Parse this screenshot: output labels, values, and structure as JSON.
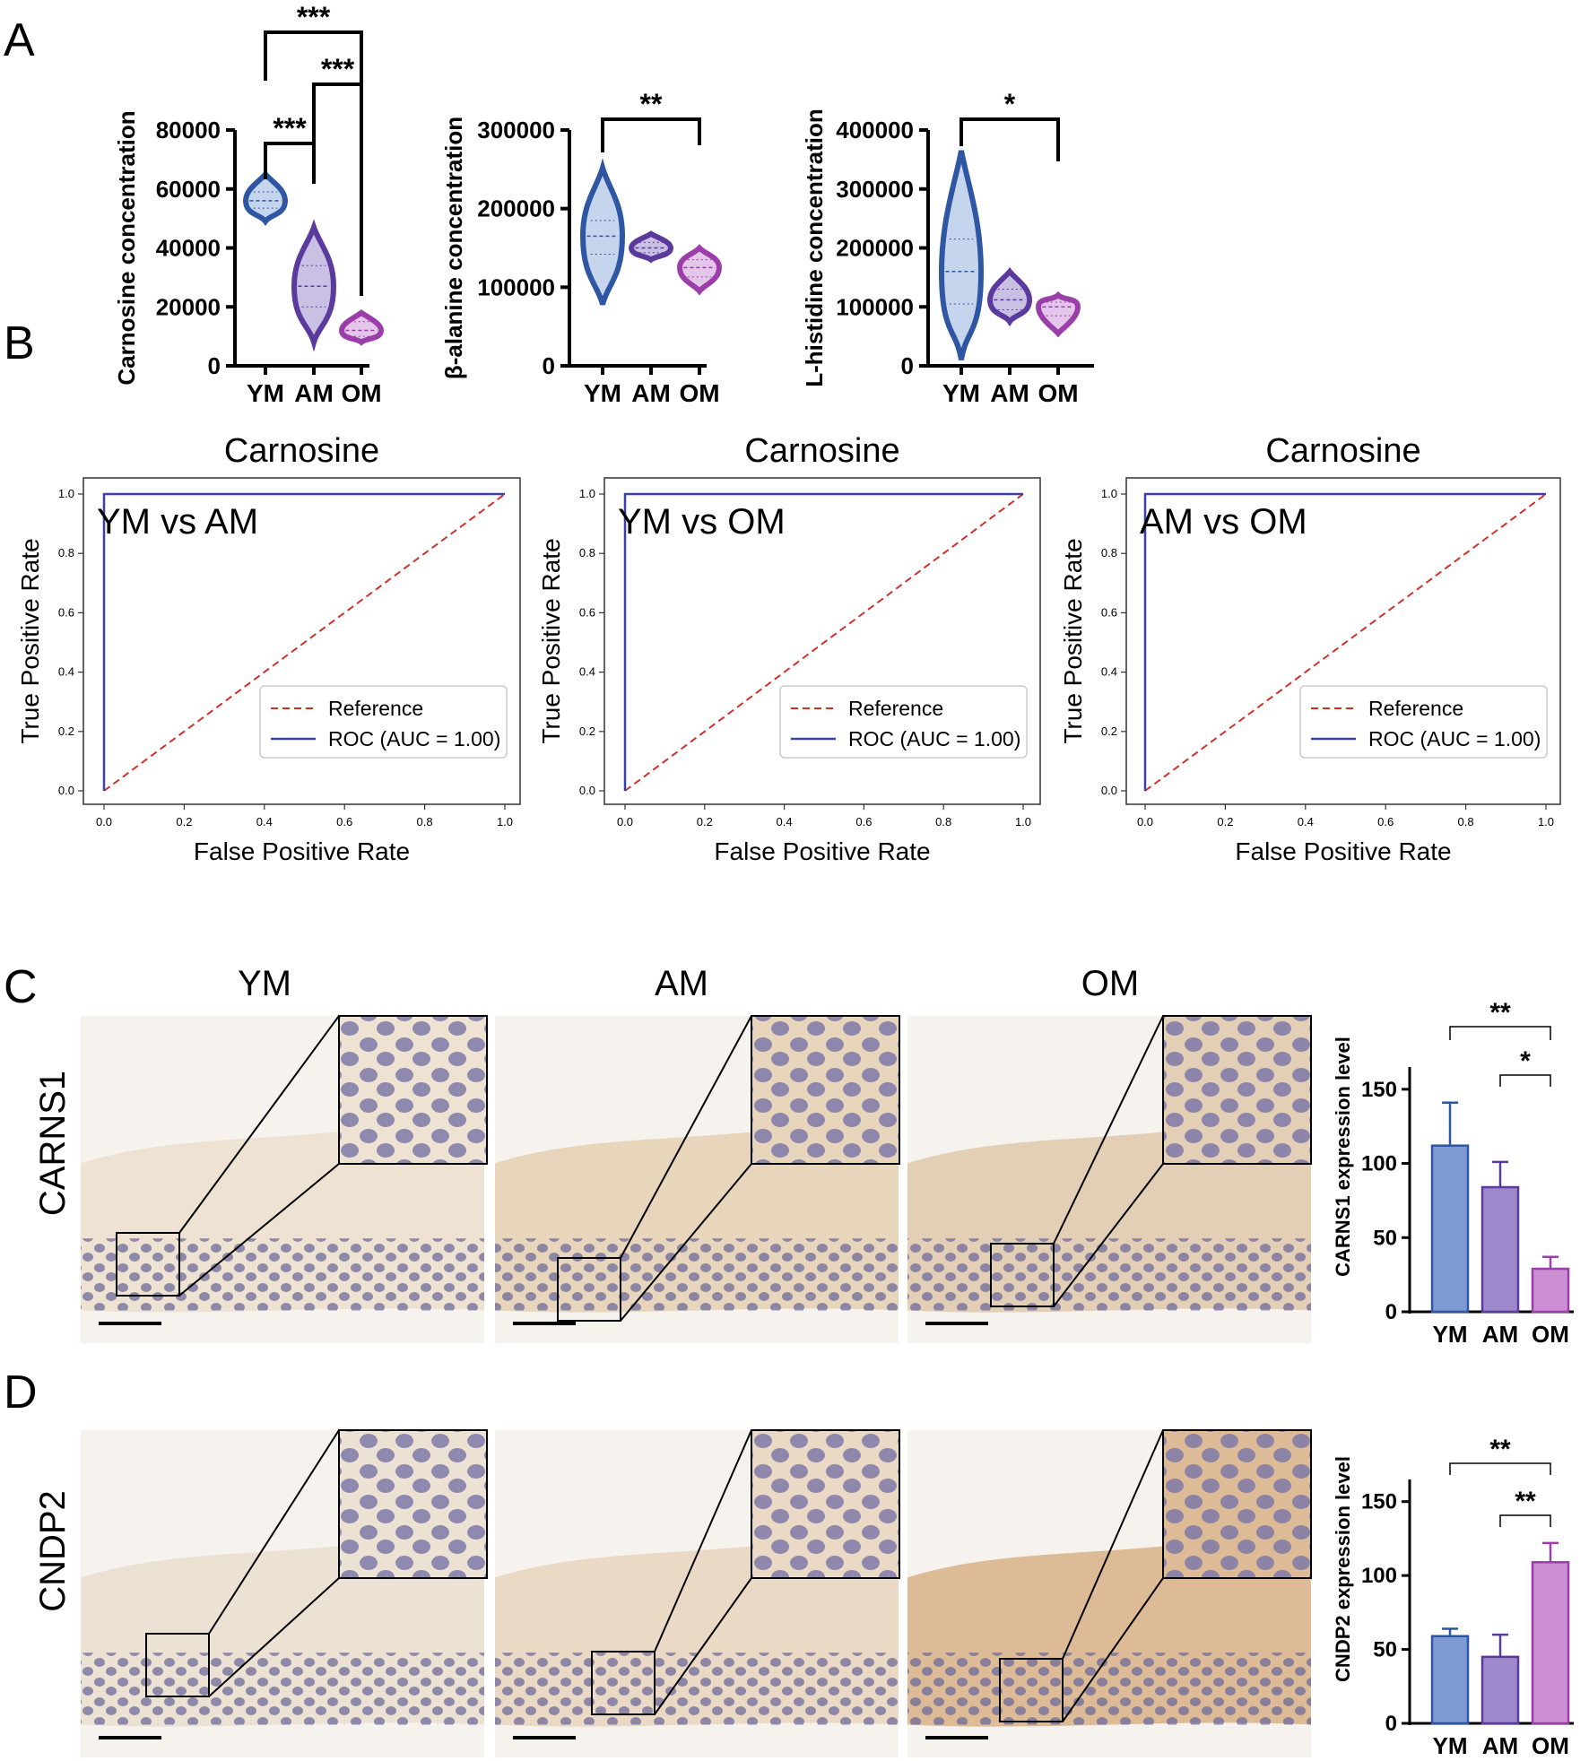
{
  "panel_labels": {
    "a": "A",
    "b": "B",
    "c": "C",
    "d": "D"
  },
  "colors": {
    "ym": "#2f56a3",
    "am": "#5b3a9e",
    "om": "#9b3ea9",
    "ym_fill": "#c5d5ee",
    "am_fill": "#c9c0e3",
    "om_fill": "#e3c6ea",
    "roc": "#3b3fa8",
    "reference": "#d0312d"
  },
  "chart_data": [
    {
      "id": "A1",
      "type": "violin",
      "ylabel": "Carnosine concentration",
      "categories": [
        "YM",
        "AM",
        "OM"
      ],
      "yticks": [
        0,
        20000,
        40000,
        60000,
        80000
      ],
      "ylim": [
        0,
        80000
      ],
      "violins": [
        {
          "group": "YM",
          "min": 49000,
          "max": 65000,
          "median": 56000,
          "q1": 53500,
          "q3": 59000
        },
        {
          "group": "AM",
          "min": 8000,
          "max": 47000,
          "median": 27000,
          "q1": 20000,
          "q3": 34000
        },
        {
          "group": "OM",
          "min": 8000,
          "max": 18000,
          "median": 12000,
          "q1": 10000,
          "q3": 15000
        }
      ],
      "significance": [
        {
          "from": "YM",
          "to": "AM",
          "label": "***"
        },
        {
          "from": "AM",
          "to": "OM",
          "label": "***"
        },
        {
          "from": "YM",
          "to": "OM",
          "label": "***"
        }
      ]
    },
    {
      "id": "A2",
      "type": "violin",
      "ylabel": "β-alanine concentration",
      "categories": [
        "YM",
        "AM",
        "OM"
      ],
      "yticks": [
        0,
        100000,
        200000,
        300000
      ],
      "ylim": [
        0,
        300000
      ],
      "violins": [
        {
          "group": "YM",
          "min": 78000,
          "max": 252000,
          "median": 165000,
          "q1": 142000,
          "q3": 185000
        },
        {
          "group": "AM",
          "min": 135000,
          "max": 168000,
          "median": 150000,
          "q1": 144000,
          "q3": 157000
        },
        {
          "group": "OM",
          "min": 95000,
          "max": 150000,
          "median": 125000,
          "q1": 113000,
          "q3": 135000
        }
      ],
      "significance": [
        {
          "from": "YM",
          "to": "OM",
          "label": "**"
        }
      ]
    },
    {
      "id": "A3",
      "type": "violin",
      "ylabel": "L-histidine concentration",
      "categories": [
        "YM",
        "AM",
        "OM"
      ],
      "yticks": [
        0,
        100000,
        200000,
        300000,
        400000
      ],
      "ylim": [
        0,
        400000
      ],
      "violins": [
        {
          "group": "YM",
          "min": 10000,
          "max": 365000,
          "median": 160000,
          "q1": 105000,
          "q3": 215000
        },
        {
          "group": "AM",
          "min": 75000,
          "max": 160000,
          "median": 112000,
          "q1": 95000,
          "q3": 130000
        },
        {
          "group": "OM",
          "min": 55000,
          "max": 120000,
          "median": 100000,
          "q1": 85000,
          "q3": 108000
        }
      ],
      "significance": [
        {
          "from": "YM",
          "to": "OM",
          "label": "*"
        }
      ]
    },
    {
      "id": "B1",
      "type": "line",
      "title": "Carnosine",
      "annotation": "YM vs AM",
      "xlabel": "False Positive Rate",
      "ylabel": "True Positive Rate",
      "xlim": [
        0,
        1
      ],
      "ylim": [
        0,
        1
      ],
      "ticks": [
        "0.0",
        "0.2",
        "0.4",
        "0.6",
        "0.8",
        "1.0"
      ],
      "legend": "bottom-right",
      "series": [
        {
          "name": "Reference",
          "style": "dashed",
          "x": [
            0,
            1
          ],
          "y": [
            0,
            1
          ]
        },
        {
          "name": "ROC (AUC = 1.00)",
          "style": "solid",
          "x": [
            0,
            0,
            1
          ],
          "y": [
            0,
            1,
            1
          ]
        }
      ]
    },
    {
      "id": "B2",
      "type": "line",
      "title": "Carnosine",
      "annotation": "YM vs OM",
      "xlabel": "False Positive Rate",
      "ylabel": "True Positive Rate",
      "xlim": [
        0,
        1
      ],
      "ylim": [
        0,
        1
      ],
      "ticks": [
        "0.0",
        "0.2",
        "0.4",
        "0.6",
        "0.8",
        "1.0"
      ],
      "legend": "bottom-right",
      "series": [
        {
          "name": "Reference",
          "style": "dashed",
          "x": [
            0,
            1
          ],
          "y": [
            0,
            1
          ]
        },
        {
          "name": "ROC (AUC = 1.00)",
          "style": "solid",
          "x": [
            0,
            0,
            1
          ],
          "y": [
            0,
            1,
            1
          ]
        }
      ]
    },
    {
      "id": "B3",
      "type": "line",
      "title": "Carnosine",
      "annotation": "AM vs OM",
      "xlabel": "False Positive Rate",
      "ylabel": "True Positive Rate",
      "xlim": [
        0,
        1
      ],
      "ylim": [
        0,
        1
      ],
      "ticks": [
        "0.0",
        "0.2",
        "0.4",
        "0.6",
        "0.8",
        "1.0"
      ],
      "legend": "bottom-right",
      "series": [
        {
          "name": "Reference",
          "style": "dashed",
          "x": [
            0,
            1
          ],
          "y": [
            0,
            1
          ]
        },
        {
          "name": "ROC (AUC = 1.00)",
          "style": "solid",
          "x": [
            0,
            0,
            1
          ],
          "y": [
            0,
            1,
            1
          ]
        }
      ]
    },
    {
      "id": "C",
      "type": "bar",
      "ylabel": "CARNS1 expression level",
      "categories": [
        "YM",
        "AM",
        "OM"
      ],
      "values": [
        112,
        84,
        29
      ],
      "errors": [
        29,
        17,
        8
      ],
      "yticks": [
        0,
        50,
        100,
        150
      ],
      "ylim": [
        0,
        165
      ],
      "significance": [
        {
          "from": "YM",
          "to": "OM",
          "label": "**"
        },
        {
          "from": "AM",
          "to": "OM",
          "label": "*"
        }
      ]
    },
    {
      "id": "D",
      "type": "bar",
      "ylabel": "CNDP2 expression level",
      "categories": [
        "YM",
        "AM",
        "OM"
      ],
      "values": [
        59,
        45,
        109
      ],
      "errors": [
        5,
        15,
        13
      ],
      "yticks": [
        0,
        50,
        100,
        150
      ],
      "ylim": [
        0,
        165
      ],
      "significance": [
        {
          "from": "YM",
          "to": "OM",
          "label": "**"
        },
        {
          "from": "AM",
          "to": "OM",
          "label": "**"
        }
      ]
    }
  ],
  "histology": {
    "columns": [
      "YM",
      "AM",
      "OM"
    ],
    "rows": [
      "CARNS1",
      "CNDP2"
    ]
  }
}
